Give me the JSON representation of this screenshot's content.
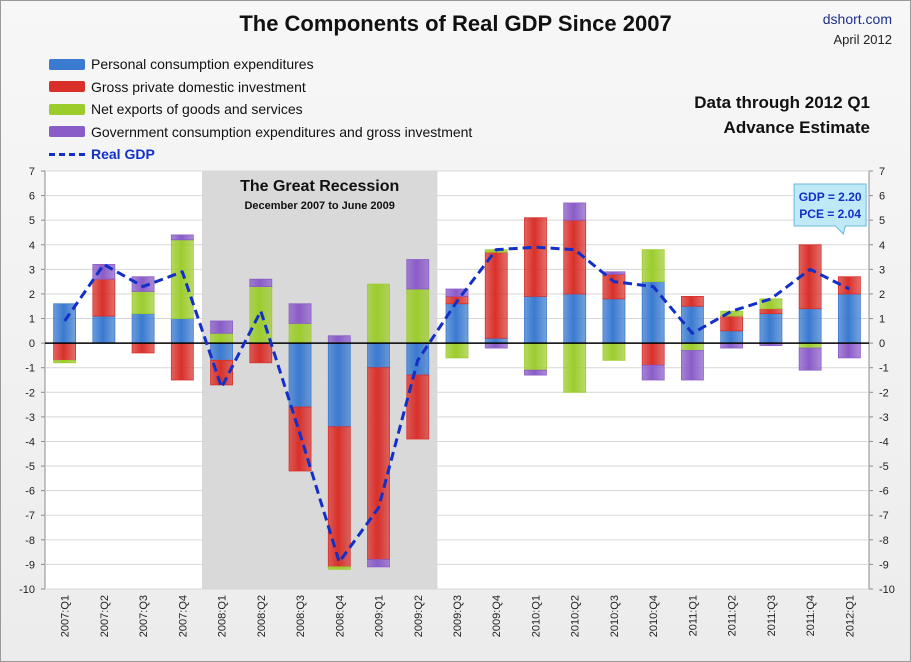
{
  "title": "The Components of Real GDP Since 2007",
  "source": "dshort.com",
  "date": "April 2012",
  "note_line1": "Data through 2012 Q1",
  "note_line2": "Advance Estimate",
  "recession": {
    "title": "The Great Recession",
    "subtitle": "December 2007  to June 2009",
    "start": "2008:Q1",
    "end": "2009:Q2"
  },
  "callout": {
    "line1": "GDP = 2.20",
    "line2": "PCE = 2.04"
  },
  "colors": {
    "pce": "#3a7ad0",
    "investment": "#d9302a",
    "net_exports": "#9ccc2c",
    "government": "#8a5cc8",
    "gdp_line": "#1230c8",
    "recession_band": "#d9d9d9",
    "callout_bg": "#bfe9f7"
  },
  "legend": [
    {
      "key": "pce",
      "label": "Personal consumption expenditures"
    },
    {
      "key": "investment",
      "label": "Gross private domestic investment"
    },
    {
      "key": "net_exports",
      "label": "Net exports of goods and services"
    },
    {
      "key": "government",
      "label": "Government consumption expenditures and gross investment"
    },
    {
      "key": "gdp_line",
      "label": "Real GDP"
    }
  ],
  "chart_data": {
    "type": "bar",
    "stacked": true,
    "categories": [
      "2007:Q1",
      "2007:Q2",
      "2007:Q3",
      "2007:Q4",
      "2008:Q1",
      "2008:Q2",
      "2008:Q3",
      "2008:Q4",
      "2009:Q1",
      "2009:Q2",
      "2009:Q3",
      "2009:Q4",
      "2010:Q1",
      "2010:Q2",
      "2010:Q3",
      "2010:Q4",
      "2011:Q1",
      "2011:Q2",
      "2011:Q3",
      "2011:Q4",
      "2012:Q1"
    ],
    "series": [
      {
        "name": "Personal consumption expenditures",
        "key": "pce",
        "values": [
          1.6,
          1.1,
          1.2,
          1.0,
          -0.7,
          0.0,
          -2.6,
          -3.4,
          -1.0,
          -1.3,
          1.6,
          0.2,
          1.9,
          2.0,
          1.8,
          2.5,
          1.5,
          0.5,
          1.2,
          1.4,
          2.0
        ]
      },
      {
        "name": "Gross private domestic investment",
        "key": "investment",
        "values": [
          -0.7,
          1.5,
          -0.4,
          -1.5,
          -1.0,
          -0.8,
          -2.6,
          -5.7,
          -7.8,
          -2.6,
          0.3,
          3.5,
          3.2,
          3.0,
          1.0,
          -0.9,
          0.4,
          0.6,
          0.2,
          2.6,
          0.7
        ]
      },
      {
        "name": "Net exports of goods and services",
        "key": "net_exports",
        "values": [
          -0.1,
          0.0,
          0.9,
          3.2,
          0.4,
          2.3,
          0.8,
          -0.1,
          2.4,
          2.2,
          -0.6,
          0.1,
          -1.1,
          -2.0,
          -0.7,
          1.3,
          -0.3,
          0.2,
          0.4,
          -0.2,
          0.0
        ]
      },
      {
        "name": "Government consumption expenditures and gross investment",
        "key": "government",
        "values": [
          0.0,
          0.6,
          0.6,
          0.2,
          0.5,
          0.3,
          0.8,
          0.3,
          -0.3,
          1.2,
          0.3,
          -0.2,
          -0.2,
          0.7,
          0.1,
          -0.6,
          -1.2,
          -0.2,
          -0.1,
          -0.9,
          -0.6
        ]
      }
    ],
    "line": {
      "name": "Real GDP",
      "key": "gdp_line",
      "values": [
        0.9,
        3.2,
        2.3,
        2.9,
        -1.8,
        1.3,
        -3.7,
        -8.9,
        -6.7,
        -0.7,
        1.7,
        3.8,
        3.9,
        3.8,
        2.5,
        2.3,
        0.4,
        1.3,
        1.8,
        3.0,
        2.2
      ]
    },
    "ylim": [
      -10,
      7
    ],
    "yticks": [
      -10,
      -9,
      -8,
      -7,
      -6,
      -5,
      -4,
      -3,
      -2,
      -1,
      0,
      1,
      2,
      3,
      4,
      5,
      6,
      7
    ],
    "xlabel": "",
    "ylabel": "",
    "grid": true,
    "legend_position": "top-left"
  }
}
